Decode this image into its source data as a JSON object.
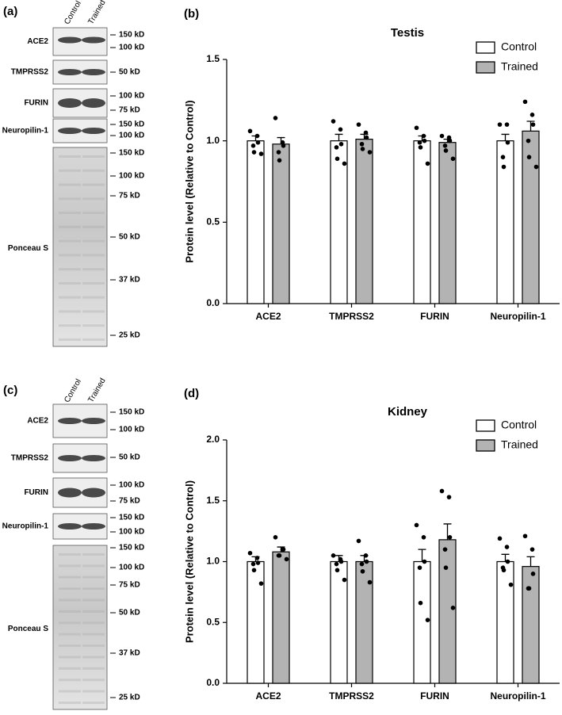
{
  "blots": [
    {
      "panel_label": "(a)",
      "lanes": [
        "Control",
        "Trained"
      ],
      "rows": [
        {
          "label": "ACE2",
          "markers": [
            "150 kD",
            "100 kD"
          ]
        },
        {
          "label": "TMPRSS2",
          "markers": [
            "50 kD"
          ]
        },
        {
          "label": "FURIN",
          "markers": [
            "100 kD",
            "75 kD"
          ]
        },
        {
          "label": "Neuropilin-1",
          "markers": [
            "150 kD",
            "100 kD"
          ]
        },
        {
          "label": "Ponceau S",
          "markers": [
            "150 kD",
            "100 kD",
            "75 kD",
            "50 kD",
            "37 kD",
            "25 kD"
          ]
        }
      ]
    },
    {
      "panel_label": "(c)",
      "lanes": [
        "Control",
        "Trained"
      ],
      "rows": [
        {
          "label": "ACE2",
          "markers": [
            "150 kD",
            "100 kD"
          ]
        },
        {
          "label": "TMPRSS2",
          "markers": [
            "50 kD"
          ]
        },
        {
          "label": "FURIN",
          "markers": [
            "100 kD",
            "75 kD"
          ]
        },
        {
          "label": "Neuropilin-1",
          "markers": [
            "150 kD",
            "100 kD"
          ]
        },
        {
          "label": "Ponceau S",
          "markers": [
            "150 kD",
            "100 kD",
            "75 kD",
            "50 kD",
            "37 kD",
            "25 kD"
          ]
        }
      ]
    }
  ],
  "chart_data": [
    {
      "type": "bar",
      "panel_label": "(b)",
      "title": "Testis",
      "ylabel": "Protein level (Relative to Control)",
      "categories": [
        "ACE2",
        "TMPRSS2",
        "FURIN",
        "Neuropilin-1"
      ],
      "ylim": [
        0,
        1.5
      ],
      "yticks": [
        {
          "value": 0,
          "label": "0.0"
        },
        0.5,
        {
          "value": 1,
          "label": "1.0"
        },
        1.5
      ],
      "legend": "upper right",
      "series": [
        {
          "name": "Control",
          "color": "#ffffff",
          "values": [
            1.0,
            1.0,
            1.0,
            1.0
          ],
          "errors": [
            0.03,
            0.04,
            0.03,
            0.04
          ],
          "points": [
            [
              1.06,
              1.03,
              0.99,
              0.97,
              0.93,
              0.92
            ],
            [
              1.12,
              1.07,
              0.98,
              0.96,
              0.89,
              0.86
            ],
            [
              1.08,
              1.03,
              1.0,
              0.99,
              0.96,
              0.86
            ],
            [
              1.1,
              1.1,
              0.99,
              0.9,
              0.84
            ]
          ]
        },
        {
          "name": "Trained",
          "color": "#b3b3b3",
          "values": [
            0.98,
            1.01,
            0.99,
            1.06
          ],
          "errors": [
            0.04,
            0.03,
            0.02,
            0.06
          ],
          "points": [
            [
              1.14,
              0.99,
              0.97,
              0.93,
              0.88
            ],
            [
              1.1,
              1.05,
              1.02,
              0.98,
              0.95,
              0.93
            ],
            [
              1.03,
              1.02,
              1.0,
              0.97,
              0.94,
              0.89
            ],
            [
              1.24,
              1.16,
              1.1,
              1.0,
              0.9,
              0.84
            ]
          ]
        }
      ]
    },
    {
      "type": "bar",
      "panel_label": "(d)",
      "title": "Kidney",
      "ylabel": "Protein level (Relative to Control)",
      "categories": [
        "ACE2",
        "TMPRSS2",
        "FURIN",
        "Neuropilin-1"
      ],
      "ylim": [
        0,
        2
      ],
      "yticks": [
        {
          "value": 0,
          "label": "0.0"
        },
        0.5,
        {
          "value": 1,
          "label": "1.0"
        },
        1.5,
        {
          "value": 2,
          "label": "2.0"
        }
      ],
      "legend": "upper right",
      "series": [
        {
          "name": "Control",
          "color": "#ffffff",
          "values": [
            1.0,
            1.0,
            1.0,
            1.0
          ],
          "errors": [
            0.04,
            0.05,
            0.1,
            0.06
          ],
          "points": [
            [
              1.07,
              1.03,
              0.99,
              0.98,
              0.93,
              0.82
            ],
            [
              1.05,
              1.02,
              1.0,
              0.98,
              0.93,
              0.85
            ],
            [
              1.3,
              1.2,
              1.0,
              0.95,
              0.66,
              0.52
            ],
            [
              1.19,
              1.12,
              1.0,
              0.95,
              0.93,
              0.81
            ]
          ]
        },
        {
          "name": "Trained",
          "color": "#b3b3b3",
          "values": [
            1.08,
            1.0,
            1.18,
            0.96
          ],
          "errors": [
            0.04,
            0.05,
            0.13,
            0.08
          ],
          "points": [
            [
              1.2,
              1.1,
              1.1,
              1.05,
              1.05,
              1.02
            ],
            [
              1.17,
              1.05,
              1.0,
              0.98,
              0.92,
              0.83
            ],
            [
              1.58,
              1.53,
              1.2,
              1.1,
              0.95,
              0.62
            ],
            [
              1.21,
              1.1,
              0.9,
              0.78,
              0.78
            ]
          ]
        }
      ]
    }
  ]
}
